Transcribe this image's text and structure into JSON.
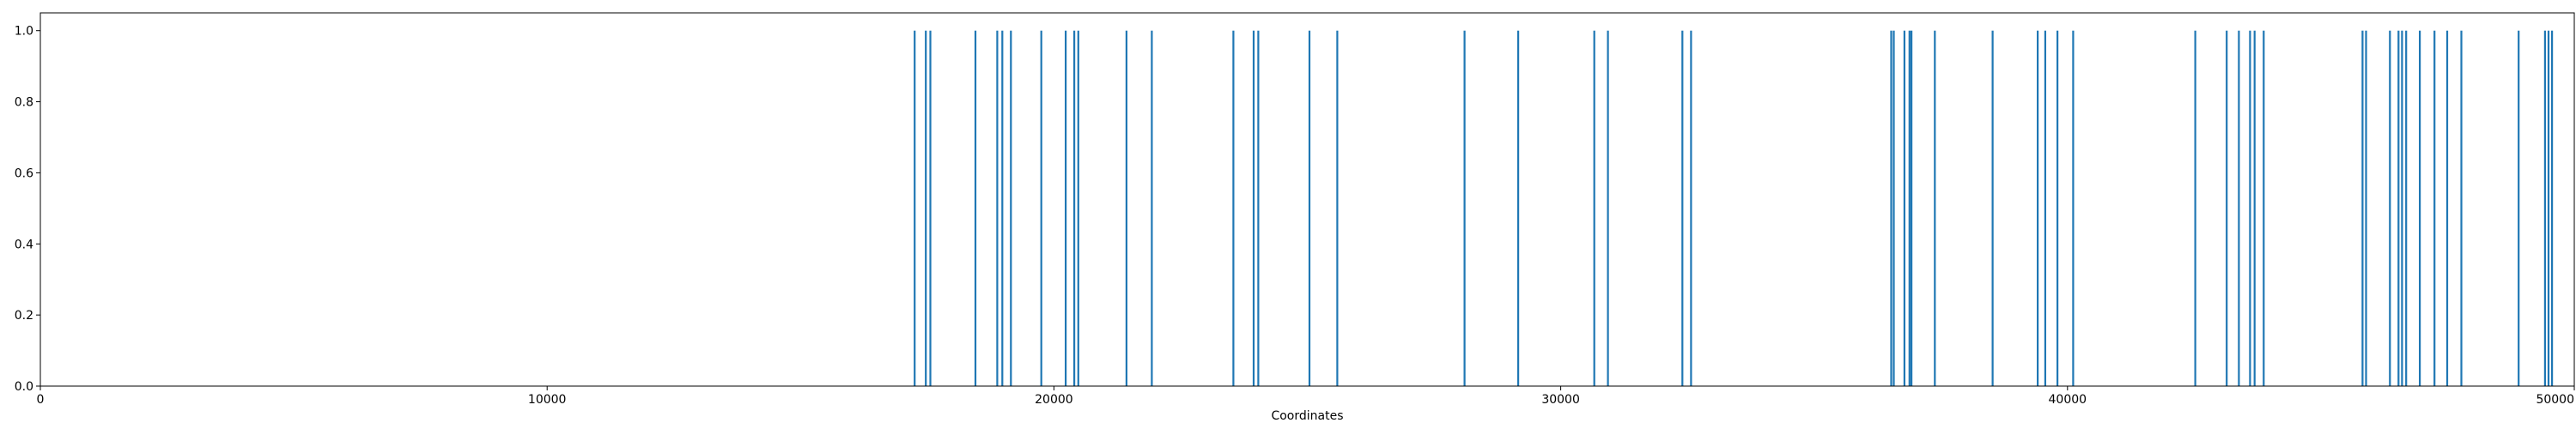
{
  "chart_data": {
    "type": "bar",
    "title": "",
    "xlabel": "Coordinates",
    "ylabel": "",
    "xlim": [
      0,
      50000
    ],
    "ylim": [
      0,
      1.05
    ],
    "grid": false,
    "legend": "none",
    "bar_color": "#1f77b4",
    "x_ticks": [
      0,
      10000,
      20000,
      30000,
      40000,
      50000
    ],
    "x_tick_labels": [
      "0",
      "10000",
      "20000",
      "30000",
      "40000",
      "50000"
    ],
    "y_ticks": [
      0.0,
      0.2,
      0.4,
      0.6,
      0.8,
      1.0
    ],
    "y_tick_labels": [
      "0.0",
      "0.2",
      "0.4",
      "0.6",
      "0.8",
      "1.0"
    ],
    "series": [
      {
        "x": [
          17250,
          17470,
          17560,
          18450,
          18880,
          18980,
          19150,
          19750,
          20230,
          20400,
          20480,
          21430,
          21930,
          23540,
          23940,
          24030,
          25040,
          25590,
          28100,
          29160,
          30660,
          30930,
          32400,
          32570,
          36520,
          36570,
          36780,
          36880,
          36920,
          37380,
          38520,
          39410,
          39560,
          39800,
          40110,
          42520,
          43140,
          43380,
          43600,
          43690,
          43870,
          45820,
          45890,
          46360,
          46530,
          46600,
          46680,
          46950,
          47240,
          47490,
          47770,
          48900,
          49420,
          49490,
          49560
        ],
        "values": [
          1,
          1,
          1,
          1,
          1,
          1,
          1,
          1,
          1,
          1,
          1,
          1,
          1,
          1,
          1,
          1,
          1,
          1,
          1,
          1,
          1,
          1,
          1,
          1,
          1,
          1,
          1,
          1,
          1,
          1,
          1,
          1,
          1,
          1,
          1,
          1,
          1,
          1,
          1,
          1,
          1,
          1,
          1,
          1,
          1,
          1,
          1,
          1,
          1,
          1,
          1,
          1,
          1,
          1,
          1
        ]
      }
    ]
  }
}
